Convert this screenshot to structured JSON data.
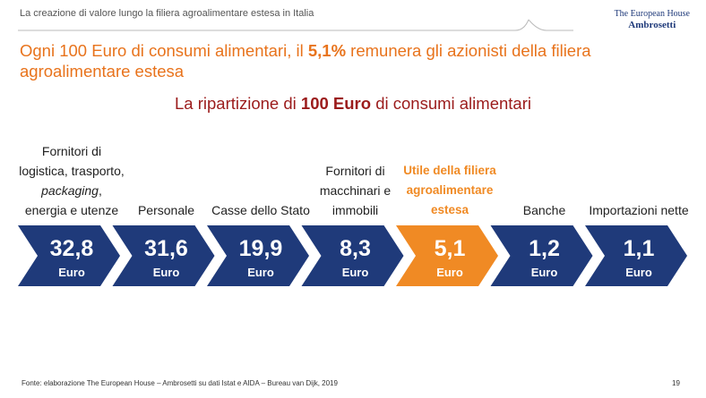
{
  "header": {
    "section": "La creazione di valore lungo la filiera agroalimentare estesa in Italia",
    "logo_line1": "The European House",
    "logo_line2": "Ambrosetti"
  },
  "title": {
    "before": "Ogni 100 Euro di consumi alimentari, il ",
    "bold": "5,1%",
    "after": " remunera gli azionisti della filiera agroalimentare estesa"
  },
  "subtitle": {
    "before": "La ripartizione di ",
    "bold": "100 Euro",
    "after": " di consumi alimentari"
  },
  "steps": [
    {
      "label": [
        "Fornitori di logistica, trasporto, ",
        "packaging",
        ", energia e utenze"
      ],
      "value": "32,8",
      "unit": "Euro"
    },
    {
      "label": [
        "Personale"
      ],
      "value": "31,6",
      "unit": "Euro"
    },
    {
      "label": [
        "Casse dello Stato"
      ],
      "value": "19,9",
      "unit": "Euro"
    },
    {
      "label": [
        "Fornitori di macchinari e immobili"
      ],
      "value": "8,3",
      "unit": "Euro"
    },
    {
      "label": [
        "Utile della filiera agroalimentare estesa"
      ],
      "value": "5,1",
      "unit": "Euro",
      "highlight": true
    },
    {
      "label": [
        "Banche"
      ],
      "value": "1,2",
      "unit": "Euro"
    },
    {
      "label": [
        "Importazioni nette"
      ],
      "value": "1,1",
      "unit": "Euro"
    }
  ],
  "footer": {
    "source": "Fonte: elaborazione The European House – Ambrosetti su dati Istat e AIDA – Bureau van Dijk, 2019",
    "page": "19"
  }
}
